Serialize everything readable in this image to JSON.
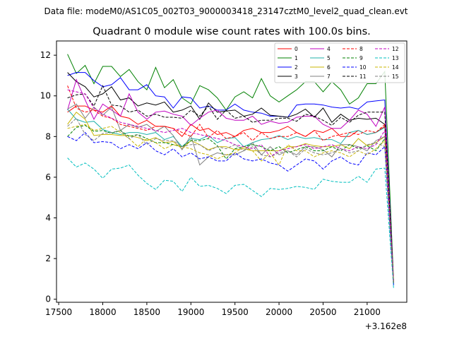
{
  "chart_data": {
    "type": "line",
    "suptitle": "Data file: modeM0/AS1C05_002T03_9000003418_23147cztM0_level2_quad_clean.evt",
    "title": "Quadrant 0 module wise count rates with 100.0s bins.",
    "xlabel": "",
    "ylabel": "",
    "x_offset_label": "+3.162e8",
    "xlim": [
      17475,
      21450
    ],
    "ylim": [
      -0.15,
      12.7
    ],
    "xticks": [
      17500,
      18000,
      18500,
      19000,
      19500,
      20000,
      20500,
      21000
    ],
    "yticks": [
      0,
      2,
      4,
      6,
      8,
      10,
      12
    ],
    "grid": false,
    "legend_position": "top-right",
    "x": [
      17600,
      17700,
      17800,
      17900,
      18000,
      18100,
      18200,
      18300,
      18400,
      18500,
      18600,
      18700,
      18800,
      18900,
      19000,
      19100,
      19200,
      19300,
      19400,
      19500,
      19600,
      19700,
      19800,
      19900,
      20000,
      20100,
      20200,
      20300,
      20400,
      20500,
      20600,
      20700,
      20800,
      20900,
      21000,
      21100,
      21200,
      21300
    ],
    "series": [
      {
        "name": "0",
        "color": "#ff0000",
        "dash": "solid",
        "values": [
          9.2,
          9.5,
          9.5,
          9.3,
          9.2,
          9.5,
          9.0,
          8.9,
          8.6,
          8.8,
          8.5,
          8.5,
          8.4,
          8.0,
          8.6,
          8.3,
          8.4,
          8.1,
          8.2,
          8.0,
          8.3,
          8.4,
          8.2,
          8.2,
          8.3,
          8.5,
          8.2,
          8.0,
          8.3,
          8.2,
          8.4,
          8.0,
          8.0,
          8.3,
          8.1,
          8.2,
          8.5,
          0.8
        ]
      },
      {
        "name": "1",
        "color": "#008000",
        "dash": "solid",
        "values": [
          12.05,
          11.1,
          11.5,
          10.6,
          11.45,
          11.45,
          10.95,
          11.3,
          10.7,
          10.3,
          11.4,
          10.4,
          10.8,
          9.9,
          9.6,
          10.5,
          10.3,
          9.9,
          9.3,
          9.95,
          10.2,
          9.9,
          10.85,
          10.0,
          9.7,
          10.0,
          10.3,
          10.7,
          10.7,
          10.2,
          10.7,
          10.3,
          9.6,
          9.9,
          10.6,
          10.6,
          11.2,
          0.9
        ]
      },
      {
        "name": "2",
        "color": "#0000ff",
        "dash": "solid",
        "values": [
          11.0,
          11.15,
          11.15,
          10.75,
          10.45,
          10.55,
          10.9,
          10.3,
          10.3,
          10.55,
          10.0,
          9.95,
          9.4,
          9.95,
          9.9,
          9.4,
          9.5,
          9.3,
          9.3,
          9.6,
          9.3,
          9.2,
          9.15,
          9.0,
          9.0,
          8.95,
          9.55,
          9.6,
          9.6,
          9.55,
          9.45,
          9.4,
          9.45,
          9.35,
          9.7,
          9.75,
          9.8,
          0.8
        ]
      },
      {
        "name": "3",
        "color": "#000000",
        "dash": "solid",
        "values": [
          11.15,
          10.7,
          10.45,
          9.95,
          10.1,
          10.45,
          9.8,
          9.9,
          9.5,
          9.65,
          9.55,
          9.7,
          9.2,
          9.3,
          9.5,
          8.85,
          9.65,
          9.2,
          9.25,
          9.3,
          9.0,
          9.1,
          9.4,
          9.05,
          9.0,
          8.95,
          9.1,
          9.35,
          8.95,
          9.4,
          8.7,
          9.1,
          8.8,
          8.9,
          8.85,
          8.9,
          8.6,
          0.8
        ]
      },
      {
        "name": "4",
        "color": "#c000c0",
        "dash": "solid",
        "values": [
          9.3,
          10.8,
          9.8,
          8.85,
          9.6,
          9.3,
          9.0,
          10.1,
          9.2,
          8.85,
          9.2,
          9.25,
          9.1,
          9.0,
          8.55,
          8.9,
          9.2,
          9.3,
          8.9,
          8.8,
          8.8,
          9.0,
          8.6,
          8.75,
          8.65,
          8.7,
          8.95,
          9.0,
          9.0,
          8.6,
          8.4,
          8.4,
          8.8,
          9.3,
          9.1,
          8.5,
          9.45,
          0.8
        ]
      },
      {
        "name": "5",
        "color": "#20b2aa",
        "dash": "solid",
        "values": [
          9.35,
          8.85,
          8.7,
          8.75,
          8.35,
          8.2,
          8.1,
          8.2,
          8.2,
          8.1,
          8.2,
          7.85,
          8.0,
          7.5,
          7.9,
          7.85,
          8.05,
          7.7,
          7.9,
          7.95,
          7.5,
          7.7,
          7.85,
          7.9,
          8.05,
          7.85,
          8.0,
          7.9,
          7.95,
          7.85,
          7.85,
          7.65,
          8.2,
          8.3,
          8.1,
          8.2,
          8.45,
          0.7
        ]
      },
      {
        "name": "6",
        "color": "#c8b400",
        "dash": "solid",
        "values": [
          8.6,
          9.2,
          8.85,
          8.05,
          8.1,
          8.1,
          8.05,
          8.05,
          7.95,
          7.8,
          7.95,
          7.7,
          7.75,
          7.4,
          7.8,
          7.6,
          7.35,
          7.5,
          7.5,
          7.35,
          7.4,
          7.3,
          7.3,
          7.3,
          7.3,
          7.5,
          7.5,
          7.65,
          7.55,
          7.5,
          7.5,
          7.6,
          7.4,
          7.9,
          7.55,
          7.7,
          8.0,
          0.9
        ]
      },
      {
        "name": "7",
        "color": "#808080",
        "dash": "solid",
        "values": [
          9.35,
          9.6,
          8.9,
          9.45,
          9.05,
          9.45,
          8.3,
          8.6,
          8.45,
          8.6,
          8.25,
          8.5,
          8.05,
          7.35,
          8.05,
          6.6,
          7.0,
          7.2,
          7.1,
          7.1,
          7.3,
          7.7,
          7.1,
          7.5,
          7.1,
          7.3,
          7.1,
          7.5,
          7.5,
          7.35,
          7.0,
          7.6,
          7.6,
          7.5,
          7.3,
          7.8,
          8.0,
          0.8
        ]
      },
      {
        "name": "8",
        "color": "#ff0000",
        "dash": "dashed",
        "values": [
          10.5,
          9.4,
          9.2,
          9.3,
          9.0,
          8.9,
          8.6,
          8.5,
          8.4,
          8.3,
          8.5,
          8.5,
          8.4,
          8.2,
          8.0,
          8.6,
          7.95,
          8.3,
          7.9,
          8.0,
          8.2,
          7.8,
          8.2,
          7.9,
          8.0,
          8.0,
          8.2,
          8.0,
          8.3,
          7.8,
          8.0,
          8.1,
          8.2,
          8.1,
          8.3,
          8.2,
          8.6,
          0.8
        ]
      },
      {
        "name": "9",
        "color": "#008000",
        "dash": "dashed",
        "values": [
          8.0,
          8.45,
          8.55,
          8.25,
          8.3,
          8.15,
          8.3,
          8.0,
          8.1,
          7.9,
          7.7,
          7.7,
          7.6,
          7.5,
          7.8,
          7.8,
          7.9,
          7.55,
          6.9,
          7.4,
          7.5,
          7.6,
          7.5,
          7.3,
          7.5,
          7.2,
          7.35,
          7.5,
          7.3,
          7.3,
          7.5,
          7.3,
          7.6,
          7.4,
          7.55,
          7.3,
          7.9,
          0.8
        ]
      },
      {
        "name": "10",
        "color": "#0000ff",
        "dash": "dashed",
        "values": [
          8.0,
          7.8,
          8.2,
          7.7,
          7.75,
          7.7,
          7.4,
          7.6,
          7.4,
          7.7,
          7.3,
          7.1,
          7.4,
          7.0,
          7.2,
          6.9,
          7.0,
          6.8,
          6.8,
          7.2,
          6.9,
          6.8,
          6.9,
          6.7,
          6.6,
          6.3,
          6.6,
          6.9,
          6.8,
          6.4,
          6.8,
          7.0,
          6.7,
          6.6,
          7.2,
          7.1,
          7.5,
          0.7
        ]
      },
      {
        "name": "11",
        "color": "#000000",
        "dash": "dashed",
        "values": [
          9.9,
          10.05,
          10.1,
          9.5,
          10.5,
          9.55,
          9.5,
          9.2,
          9.3,
          9.0,
          9.1,
          8.95,
          8.95,
          8.9,
          9.3,
          9.0,
          9.5,
          8.85,
          9.3,
          8.9,
          9.0,
          8.7,
          8.8,
          8.8,
          8.9,
          8.9,
          8.75,
          9.1,
          9.0,
          8.8,
          8.55,
          8.95,
          8.7,
          9.05,
          9.2,
          9.2,
          9.2,
          0.8
        ]
      },
      {
        "name": "12",
        "color": "#c000c0",
        "dash": "dashed",
        "values": [
          10.3,
          10.2,
          10.1,
          9.4,
          9.1,
          8.9,
          8.7,
          8.6,
          8.5,
          8.4,
          8.3,
          8.2,
          8.3,
          8.4,
          8.2,
          8.1,
          8.0,
          7.9,
          7.8,
          7.6,
          7.5,
          7.4,
          7.6,
          7.0,
          7.3,
          7.4,
          7.5,
          7.6,
          7.4,
          7.5,
          7.6,
          7.4,
          7.3,
          7.5,
          7.4,
          7.6,
          8.3,
          0.8
        ]
      },
      {
        "name": "13",
        "color": "#00bfbf",
        "dash": "dashed",
        "values": [
          6.95,
          6.5,
          6.7,
          6.4,
          5.95,
          6.4,
          6.45,
          6.6,
          6.1,
          5.7,
          5.4,
          5.85,
          5.8,
          5.3,
          6.0,
          5.55,
          5.6,
          5.45,
          5.2,
          5.6,
          5.65,
          5.35,
          5.05,
          5.45,
          5.4,
          5.45,
          5.55,
          5.5,
          5.4,
          5.9,
          5.8,
          5.75,
          5.75,
          6.05,
          5.75,
          6.4,
          6.45,
          0.55
        ]
      },
      {
        "name": "14",
        "color": "#c8b400",
        "dash": "dashed",
        "values": [
          8.4,
          8.5,
          8.6,
          8.3,
          8.4,
          8.5,
          8.2,
          7.9,
          7.5,
          7.9,
          7.7,
          7.4,
          7.6,
          7.5,
          7.4,
          7.2,
          7.1,
          6.9,
          7.1,
          7.2,
          7.5,
          7.3,
          6.8,
          7.2,
          6.6,
          7.6,
          7.3,
          7.3,
          7.0,
          7.2,
          7.3,
          7.2,
          7.0,
          7.3,
          7.1,
          7.4,
          7.8,
          0.8
        ]
      },
      {
        "name": "15",
        "color": "#808080",
        "dash": "dashed",
        "values": [
          8.5,
          8.9,
          8.1,
          7.8,
          8.15,
          8.2,
          8.3,
          7.9,
          8.1,
          7.6,
          7.9,
          7.8,
          7.8,
          7.5,
          7.6,
          7.6,
          7.3,
          7.5,
          7.4,
          7.6,
          7.3,
          7.5,
          7.1,
          7.0,
          7.2,
          7.3,
          7.0,
          7.4,
          7.2,
          7.1,
          7.2,
          7.4,
          7.2,
          7.3,
          7.6,
          7.7,
          7.5,
          0.8
        ]
      }
    ]
  }
}
